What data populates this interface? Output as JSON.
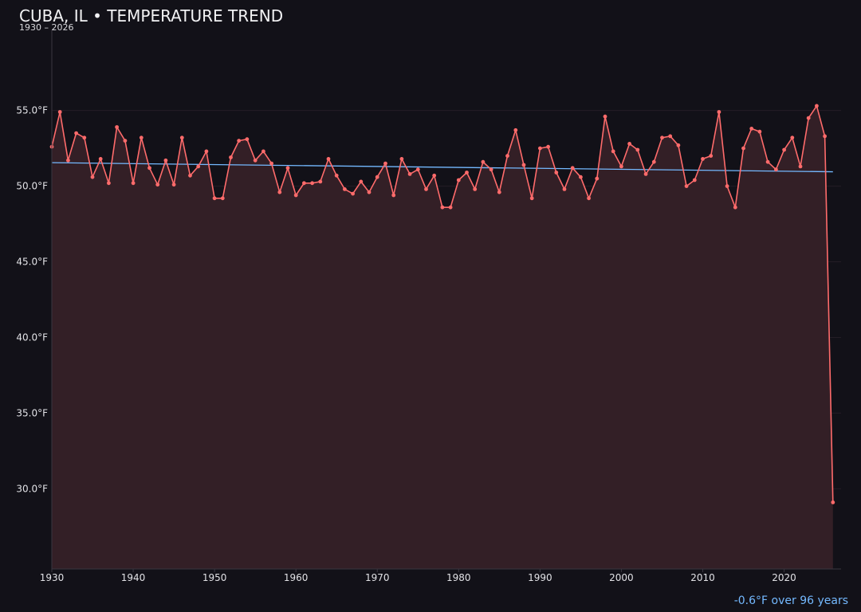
{
  "title": "CUBA, IL • TEMPERATURE TREND",
  "subtitle": "1930 – 2026",
  "summary": "-0.6°F over 96 years",
  "colors": {
    "background": "#121118",
    "line": "#ff6b6b",
    "area_fill": "#331f26",
    "trend": "#74b9ff",
    "grid": "#241d26",
    "axis": "#3a3640"
  },
  "chart_data": {
    "type": "line",
    "title": "CUBA, IL • TEMPERATURE TREND",
    "subtitle": "1930 – 2026",
    "xlim": [
      1930,
      2027
    ],
    "ylim": [
      24.7,
      60.3
    ],
    "x_ticks": [
      1930,
      1940,
      1950,
      1960,
      1970,
      1980,
      1990,
      2000,
      2010,
      2020
    ],
    "y_ticks": [
      {
        "value": 30,
        "label": "30.0°F"
      },
      {
        "value": 35,
        "label": "35.0°F"
      },
      {
        "value": 40,
        "label": "40.0°F"
      },
      {
        "value": 45,
        "label": "45.0°F"
      },
      {
        "value": 50,
        "label": "50.0°F"
      },
      {
        "value": 55,
        "label": "55.0°F"
      }
    ],
    "grid": true,
    "area_fill": true,
    "x_start": 1930,
    "values": [
      52.6,
      54.9,
      51.7,
      53.5,
      53.2,
      50.6,
      51.8,
      50.2,
      53.9,
      53.0,
      50.2,
      53.2,
      51.2,
      50.1,
      51.7,
      50.1,
      53.2,
      50.7,
      51.3,
      52.3,
      49.2,
      49.2,
      51.9,
      53.0,
      53.1,
      51.7,
      52.3,
      51.5,
      49.6,
      51.2,
      49.4,
      50.2,
      50.2,
      50.3,
      51.8,
      50.7,
      49.8,
      49.5,
      50.3,
      49.6,
      50.6,
      51.5,
      49.4,
      51.8,
      50.8,
      51.1,
      49.8,
      50.7,
      48.6,
      48.6,
      50.4,
      50.9,
      49.8,
      51.6,
      51.1,
      49.6,
      52.0,
      53.7,
      51.4,
      49.2,
      52.5,
      52.6,
      50.9,
      49.8,
      51.2,
      50.6,
      49.2,
      50.5,
      54.6,
      52.3,
      51.3,
      52.8,
      52.4,
      50.8,
      51.6,
      53.2,
      53.3,
      52.7,
      50.0,
      50.4,
      51.8,
      52.0,
      54.9,
      50.0,
      48.6,
      52.5,
      53.8,
      53.6,
      51.6,
      51.1,
      52.4,
      53.2,
      51.3,
      54.5,
      55.3,
      53.3,
      29.1
    ],
    "trend": {
      "name": "",
      "x": [
        1930,
        2026
      ],
      "y": [
        51.55,
        50.95
      ]
    }
  }
}
